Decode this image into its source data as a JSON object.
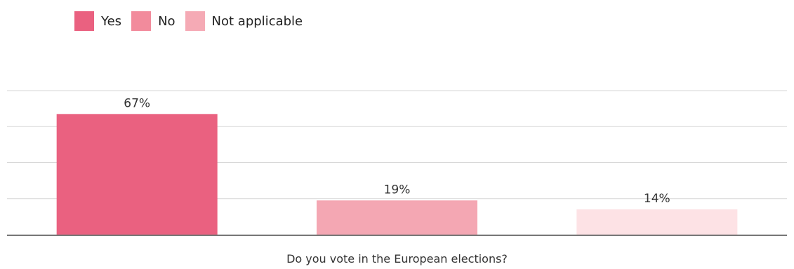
{
  "legend": [
    {
      "label": "Yes",
      "color": "#ea6180"
    },
    {
      "label": "No",
      "color": "#f28b9c"
    },
    {
      "label": "Not applicable",
      "color": "#f5aab5"
    }
  ],
  "chart_data": {
    "type": "bar",
    "categories": [
      "Yes",
      "No",
      "Not applicable"
    ],
    "values": [
      67,
      19,
      14
    ],
    "value_labels": [
      "67%",
      "19%",
      "14%"
    ],
    "bar_colors": [
      "#ea6180",
      "#f4a7b3",
      "#fde2e5"
    ],
    "xlabel": "Do you vote in the European elections?",
    "ylim": [
      0,
      80
    ],
    "grid": true,
    "legend_position": "top-left"
  }
}
